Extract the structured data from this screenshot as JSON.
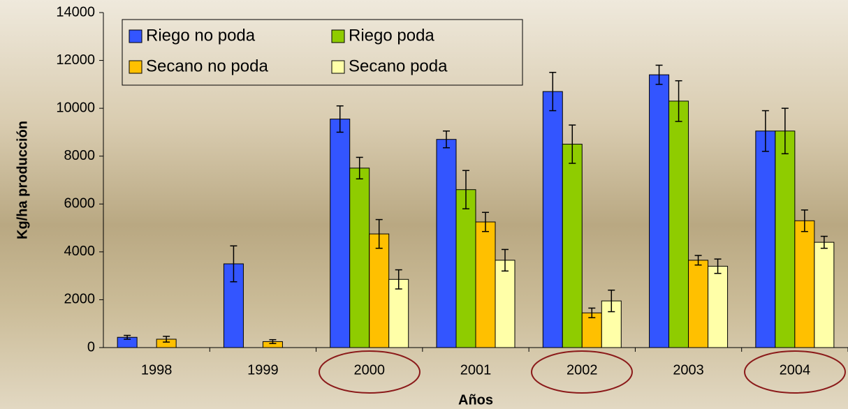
{
  "chart_data": {
    "type": "bar",
    "x_label": "Años",
    "y_label": "Kg/ha producción",
    "categories": [
      "1998",
      "1999",
      "2000",
      "2001",
      "2002",
      "2003",
      "2004"
    ],
    "series": [
      {
        "name": "Riego no poda",
        "color": "#3355ff",
        "values": [
          430,
          3500,
          9550,
          8700,
          10700,
          11400,
          9050
        ],
        "errors": [
          80,
          750,
          550,
          350,
          800,
          400,
          850
        ]
      },
      {
        "name": "Riego poda",
        "color": "#8fcc00",
        "values": [
          null,
          null,
          7500,
          6600,
          8500,
          10300,
          9050
        ],
        "errors": [
          null,
          null,
          450,
          800,
          800,
          850,
          950
        ]
      },
      {
        "name": "Secano no poda",
        "color": "#ffc000",
        "values": [
          350,
          250,
          4750,
          5250,
          1450,
          3650,
          5300
        ],
        "errors": [
          120,
          80,
          600,
          400,
          200,
          200,
          450
        ]
      },
      {
        "name": "Secano poda",
        "color": "#ffffa8",
        "values": [
          null,
          null,
          2850,
          3650,
          1950,
          3400,
          4400
        ],
        "errors": [
          null,
          null,
          400,
          450,
          450,
          300,
          250
        ]
      }
    ],
    "ylim": [
      0,
      14000
    ],
    "yticks": [
      0,
      2000,
      4000,
      6000,
      8000,
      10000,
      12000,
      14000
    ],
    "legend": "upper left",
    "grid": false
  }
}
